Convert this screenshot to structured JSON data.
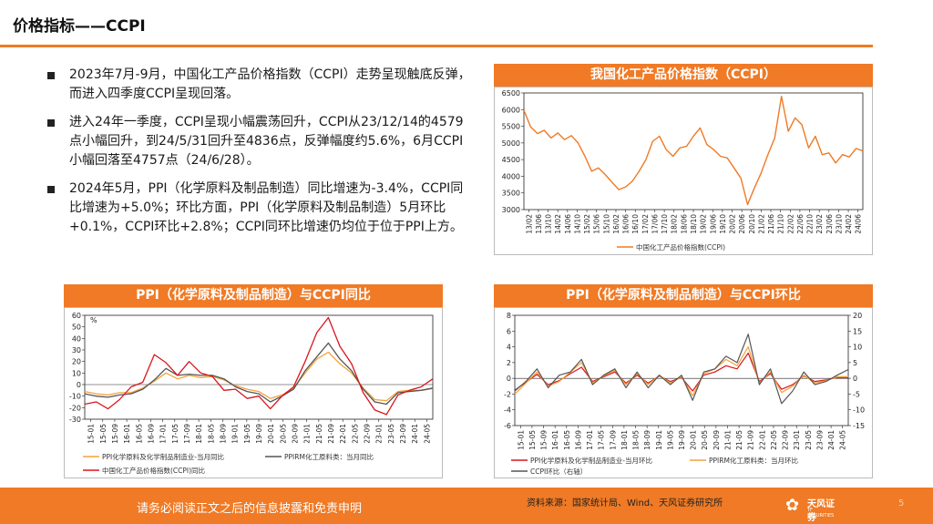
{
  "header": {
    "title": "价格指标——CCPI"
  },
  "bullets": [
    "2023年7月-9月，中国化工产品价格指数（CCPI）走势呈现触底反弹，而进入四季度CCPI呈现回落。",
    "进入24年一季度，CCPI呈现小幅震荡回升，CCPI从23/12/14的4579点小幅回升，到24/5/31回升至4836点，反弹幅度约5.6%，6月CCPI小幅回落至4757点（24/6/28）。",
    "2024年5月，PPI（化学原料及制品制造）同比增速为-3.4%，CCPI同比增速为+5.0%；环比方面，PPI（化学原料及制品制造）5月环比+0.1%，CCPI环比+2.8%；CCPI同环比增速仍均位于位于PPI上方。"
  ],
  "footer": {
    "disclaimer": "请务必阅读正文之后的信息披露和免责申明",
    "source": "资料来源：国家统计局、Wind、天风证券研究所",
    "logo_name": "天风证券",
    "logo_en": "TF SECURITIES",
    "page": "5"
  },
  "colors": {
    "accent": "#f07a25",
    "ccpi": "#f07a25",
    "ppi_yoy_orange": "#f5a13a",
    "ppi_gray": "#555555",
    "ccpi_red": "#d8161d"
  },
  "chart_data": [
    {
      "id": "ccpi",
      "type": "line",
      "title": "我国化工产品价格指数（CCPI）",
      "ylim": [
        3000,
        6500
      ],
      "yticks": [
        3000,
        3500,
        4000,
        4500,
        5000,
        5500,
        6000,
        6500
      ],
      "xticks": [
        "13/02",
        "13/06",
        "13/10",
        "14/02",
        "14/06",
        "14/10",
        "15/02",
        "15/06",
        "15/10",
        "16/02",
        "16/06",
        "16/10",
        "17/02",
        "17/06",
        "17/10",
        "18/02",
        "18/06",
        "18/10",
        "19/02",
        "19/06",
        "19/10",
        "20/02",
        "20/06",
        "20/10",
        "21/02",
        "21/06",
        "21/10",
        "22/02",
        "22/06",
        "22/10",
        "23/02",
        "23/06",
        "23/10",
        "24/02",
        "24/06"
      ],
      "series": [
        {
          "name": "中国化工产品价格指数(CCPI)",
          "values": [
            5980,
            5480,
            5280,
            5380,
            5150,
            5300,
            5100,
            5220,
            5000,
            4600,
            4150,
            4250,
            4050,
            3820,
            3600,
            3680,
            3850,
            4150,
            4500,
            5050,
            5200,
            4800,
            4600,
            4850,
            4900,
            5200,
            5450,
            4950,
            4800,
            4600,
            4550,
            4250,
            3950,
            3150,
            3650,
            4100,
            4650,
            5150,
            6400,
            5350,
            5750,
            5550,
            4850,
            5200,
            4650,
            4700,
            4400,
            4650,
            4580,
            4836,
            4757
          ]
        }
      ]
    },
    {
      "id": "yoy",
      "type": "line",
      "title": "PPI（化学原料及制品制造）与CCPI同比",
      "ylabel": "%",
      "ylim": [
        -30,
        60
      ],
      "yticks": [
        -30,
        -20,
        -10,
        0,
        10,
        20,
        30,
        40,
        50,
        60
      ],
      "xticks": [
        "15-01",
        "15-05",
        "15-09",
        "16-01",
        "16-05",
        "16-09",
        "17-01",
        "17-05",
        "17-09",
        "18-01",
        "18-05",
        "18-09",
        "19-01",
        "19-05",
        "19-09",
        "20-01",
        "20-05",
        "20-09",
        "21-01",
        "21-05",
        "21-09",
        "22-01",
        "22-05",
        "22-09",
        "23-01",
        "23-05",
        "23-09",
        "24-01",
        "24-05"
      ],
      "series": [
        {
          "name": "PPI化学原料及化学制品制造业-当月同比",
          "values": [
            -6,
            -8,
            -9,
            -7,
            -7,
            -3,
            3,
            10,
            5,
            8,
            6,
            7,
            4,
            -1,
            -4,
            -6,
            -12,
            -9,
            -3,
            10,
            22,
            28,
            18,
            10,
            -3,
            -13,
            -14,
            -6,
            -5,
            -5,
            -3.4
          ]
        },
        {
          "name": "PPIRM化工原料类：当月同比",
          "values": [
            -8,
            -10,
            -11,
            -9,
            -8,
            -4,
            4,
            14,
            8,
            9,
            8,
            8,
            5,
            -2,
            -6,
            -8,
            -15,
            -10,
            -4,
            12,
            24,
            36,
            22,
            12,
            -4,
            -15,
            -17,
            -7,
            -6,
            -5,
            -3
          ]
        },
        {
          "name": "中国化工产品价格指数(CCPI)同比",
          "values": [
            -17,
            -15,
            -21,
            -13,
            -2,
            2,
            26,
            19,
            8,
            20,
            10,
            7,
            -5,
            -4,
            -12,
            -10,
            -21,
            -10,
            -2,
            20,
            45,
            58,
            33,
            18,
            -7,
            -22,
            -26,
            -9,
            -5,
            -2,
            5.0
          ]
        }
      ]
    },
    {
      "id": "mom",
      "type": "line",
      "title": "PPI（化学原料及制品制造）与CCPI环比",
      "ylim_left": [
        -6,
        8
      ],
      "ylim_right": [
        -15,
        20
      ],
      "yticks_left": [
        -6,
        -4,
        -2,
        0,
        2,
        4,
        6,
        8
      ],
      "yticks_right": [
        -15,
        -10,
        -5,
        0,
        5,
        10,
        15,
        20
      ],
      "xticks": [
        "15-01",
        "15-05",
        "15-09",
        "16-01",
        "16-05",
        "16-09",
        "17-01",
        "17-05",
        "17-09",
        "18-01",
        "18-05",
        "18-09",
        "19-01",
        "19-05",
        "19-09",
        "20-01",
        "20-05",
        "20-09",
        "21-01",
        "21-05",
        "21-09",
        "22-01",
        "22-05",
        "22-09",
        "23-01",
        "23-05",
        "23-09",
        "24-01",
        "24-05"
      ],
      "series": [
        {
          "name": "PPI化学原料及化学制品制造业-当月环比",
          "axis": "left",
          "values": [
            -1.5,
            -0.5,
            0.5,
            -0.8,
            -0.3,
            0.6,
            1.4,
            -0.4,
            0.2,
            0.8,
            -0.6,
            0.4,
            -0.6,
            0.3,
            -0.4,
            0.1,
            -1.6,
            0.4,
            0.8,
            1.6,
            1.2,
            3.2,
            -0.4,
            0.6,
            -1.4,
            -0.8,
            0.3,
            -0.4,
            -0.2,
            0.1,
            0.1
          ]
        },
        {
          "name": "PPIRM化工原料类：当月环比",
          "axis": "left",
          "values": [
            -2,
            -0.6,
            0.8,
            -1,
            -0.4,
            0.8,
            2,
            -0.6,
            0.3,
            1,
            -0.8,
            0.6,
            -0.8,
            0.4,
            -0.6,
            0.2,
            -2.2,
            0.6,
            1.2,
            2.4,
            1.6,
            4,
            -0.6,
            0.8,
            -1.8,
            -1,
            0.4,
            -0.6,
            -0.3,
            0.2,
            0.2
          ]
        },
        {
          "name": "CCPI环比（右轴）",
          "axis": "right",
          "values": [
            -4,
            -1,
            3,
            -3,
            1,
            2,
            6,
            -2,
            1,
            3,
            -3,
            2,
            -3,
            1,
            -2,
            1,
            -7,
            2,
            3,
            7,
            5,
            14,
            -2,
            3,
            -8,
            -4,
            2,
            -2,
            -1,
            1,
            2.8
          ]
        }
      ]
    }
  ]
}
